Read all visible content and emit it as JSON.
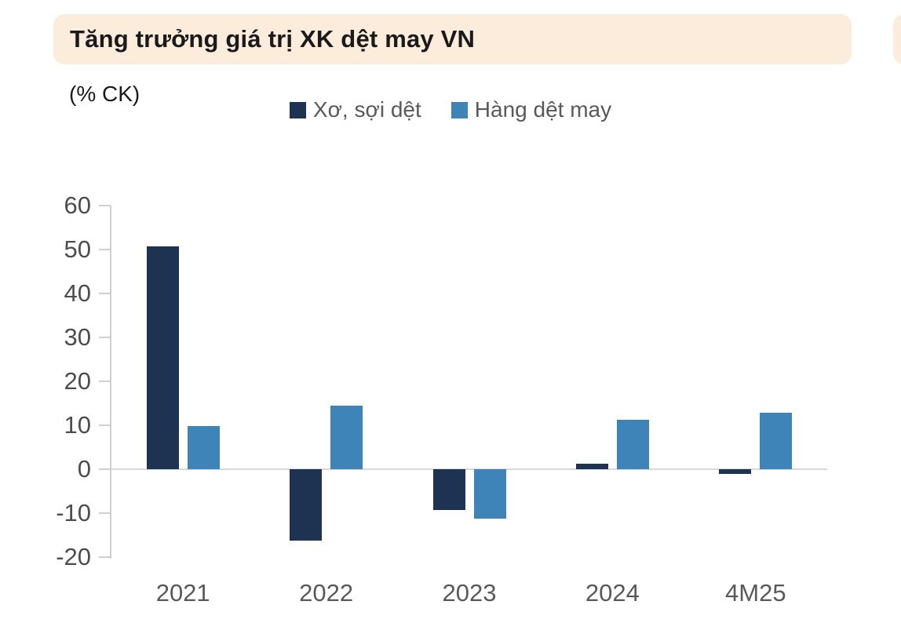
{
  "header": {
    "title": "Tăng trưởng giá trị XK dệt may VN",
    "card_background": "#fcecdc",
    "adjacent_card_background": "#fcecdc"
  },
  "unit_label": "(% CK)",
  "chart_data": {
    "type": "bar",
    "title": "Tăng trưởng giá trị XK dệt may VN",
    "ylabel": "(% CK)",
    "xlabel": "",
    "categories": [
      "2021",
      "2022",
      "2023",
      "2024",
      "4M25"
    ],
    "series": [
      {
        "name": "Xơ, sợi dệt",
        "color": "#1e3251",
        "values": [
          50.8,
          -16.2,
          -9.3,
          1.2,
          -1.1
        ]
      },
      {
        "name": "Hàng dệt may",
        "color": "#3e84b8",
        "values": [
          9.8,
          14.5,
          -11.3,
          11.2,
          12.9
        ]
      }
    ],
    "ylim": [
      -20,
      60
    ],
    "y_ticks": [
      60,
      50,
      40,
      30,
      20,
      10,
      0,
      -10,
      -20
    ],
    "grid": false,
    "legend_position": "top-center"
  },
  "colors": {
    "axis_line": "#cfcfcf",
    "zero_line": "#d9d9d9",
    "y_tick_label": "#4d4d4d",
    "x_tick_label": "#595959",
    "legend_text": "#595959",
    "title_text": "#1a1a1a"
  }
}
